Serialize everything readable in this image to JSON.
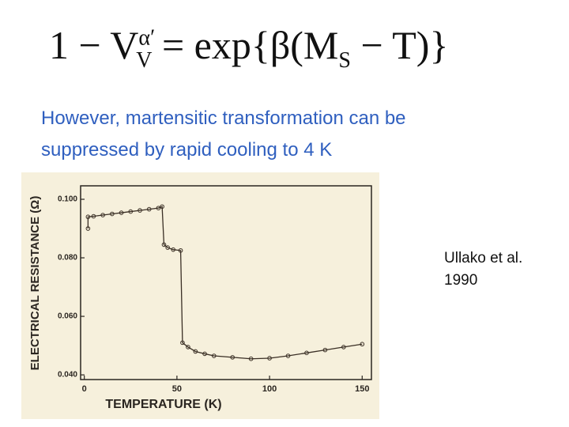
{
  "equation": {
    "lhs_base": "1 − V",
    "lhs_sup": "α′",
    "lhs_sub": "V",
    "rhs_start": "= exp{β(M",
    "rhs_sub": "S",
    "rhs_end": " − T)}"
  },
  "text": {
    "lines": [
      "However, martensitic transformation can be",
      "suppressed by rapid cooling to 4 K"
    ]
  },
  "citation": {
    "lines": [
      "Ullako et al.",
      "1990"
    ]
  },
  "chart_data": {
    "type": "line",
    "x_label": "TEMPERATURE (K)",
    "y_label": "ELECTRICAL RESISTANCE (Ω)",
    "x": [
      2,
      2,
      5,
      10,
      15,
      20,
      25,
      30,
      35,
      40,
      42,
      43,
      45,
      48,
      52,
      53,
      56,
      60,
      65,
      70,
      80,
      90,
      100,
      110,
      120,
      130,
      140,
      150
    ],
    "series": [
      {
        "color": "#3a2f25",
        "values": [
          0.09,
          0.094,
          0.0942,
          0.0946,
          0.095,
          0.0954,
          0.0958,
          0.0962,
          0.0966,
          0.097,
          0.0975,
          0.0845,
          0.0835,
          0.0828,
          0.0825,
          0.051,
          0.0495,
          0.048,
          0.0472,
          0.0465,
          0.046,
          0.0455,
          0.0457,
          0.0465,
          0.0475,
          0.0485,
          0.0495,
          0.0505
        ]
      }
    ],
    "xlim": [
      -2,
      155
    ],
    "ylim": [
      0.0384,
      0.1046
    ],
    "xticks": [
      0,
      50,
      100,
      150
    ],
    "yticks": [
      {
        "value": 0.04,
        "label": "0.040"
      },
      {
        "value": 0.06,
        "label": "0.060"
      },
      {
        "value": 0.08,
        "label": "0.080"
      },
      {
        "value": 0.1,
        "label": "0.100"
      }
    ]
  }
}
